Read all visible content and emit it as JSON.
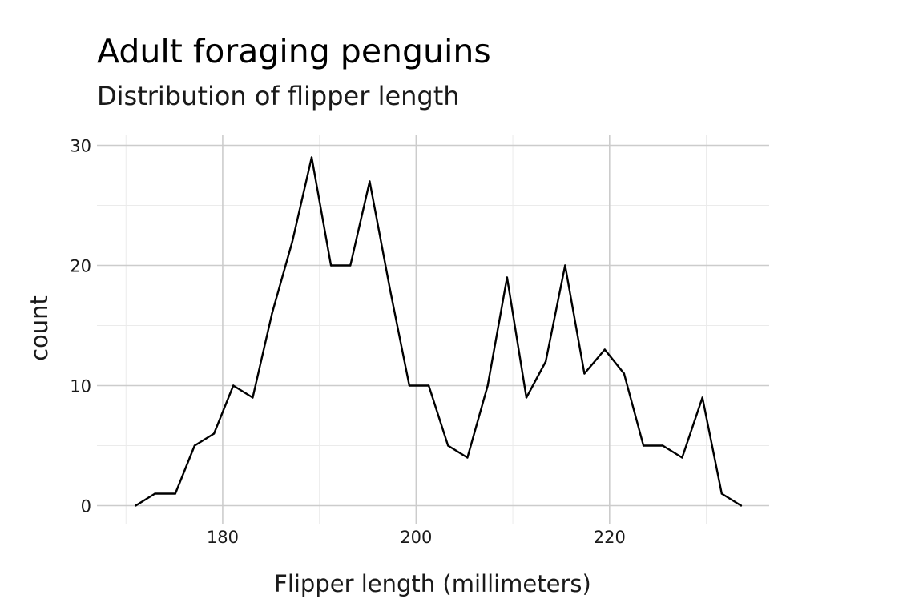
{
  "chart_data": {
    "type": "line",
    "title": "Adult foraging penguins",
    "subtitle": "Distribution of flipper length",
    "xlabel": "Flipper length (millimeters)",
    "ylabel": "count",
    "xlim": [
      167,
      236.5
    ],
    "ylim": [
      -1.5,
      30.9
    ],
    "x_ticks": [
      180,
      200,
      220
    ],
    "x_tick_labels": [
      "180",
      "200",
      "220"
    ],
    "x_minor_ticks": [
      170,
      190,
      210,
      230
    ],
    "y_ticks": [
      0,
      10,
      20,
      30
    ],
    "y_tick_labels": [
      "0",
      "10",
      "20",
      "30"
    ],
    "y_minor_ticks": [
      5,
      15,
      25
    ],
    "grid": true,
    "series": [
      {
        "x": [
          171.0,
          173.0,
          175.1,
          177.1,
          179.1,
          181.1,
          183.1,
          185.1,
          187.2,
          189.2,
          191.2,
          193.2,
          195.2,
          197.3,
          199.3,
          201.3,
          203.3,
          205.3,
          207.4,
          209.4,
          211.4,
          213.4,
          215.4,
          217.4,
          219.5,
          221.5,
          223.5,
          225.5,
          227.5,
          229.6,
          231.6,
          233.6
        ],
        "values": [
          0,
          1,
          1,
          5,
          6,
          10,
          9,
          16,
          22,
          29,
          20,
          20,
          27,
          18,
          10,
          10,
          5,
          4,
          10,
          19,
          9,
          12,
          20,
          11,
          13,
          11,
          5,
          5,
          4,
          9,
          1,
          0
        ],
        "color": "#000000"
      }
    ]
  }
}
